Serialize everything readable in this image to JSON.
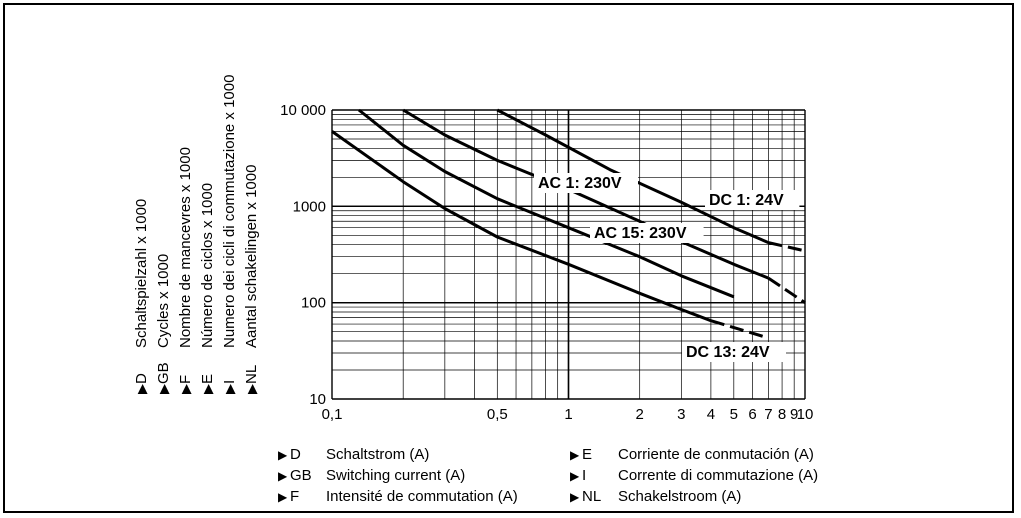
{
  "y_axis_labels": [
    {
      "code": "D",
      "text": "Schaltspielzahl x 1000"
    },
    {
      "code": "GB",
      "text": "Cycles x 1000"
    },
    {
      "code": "F",
      "text": "Nombre de mancevres x 1000"
    },
    {
      "code": "E",
      "text": "Número de ciclos x 1000"
    },
    {
      "code": "I",
      "text": "Numero dei cicli di commutazione x 1000"
    },
    {
      "code": "NL",
      "text": "Aantal schakelingen x 1000"
    }
  ],
  "x_axis_labels": [
    {
      "code": "D",
      "text": "Schaltstrom (A)"
    },
    {
      "code": "GB",
      "text": "Switching current (A)"
    },
    {
      "code": "F",
      "text": "Intensité de commutation (A)"
    },
    {
      "code": "E",
      "text": "Corriente de conmutación (A)"
    },
    {
      "code": "I",
      "text": "Corrente di commutazione (A)"
    },
    {
      "code": "NL",
      "text": "Schakelstroom (A)"
    }
  ],
  "triangle_glyph": "▶",
  "chart_data": {
    "type": "line",
    "x_scale": "log",
    "y_scale": "log",
    "xlim": [
      0.1,
      10
    ],
    "ylim": [
      10,
      10000
    ],
    "grid": true,
    "x_ticks": [
      {
        "v": 0.1,
        "label": "0,1"
      },
      {
        "v": 0.5,
        "label": "0,5"
      },
      {
        "v": 1,
        "label": "1"
      },
      {
        "v": 2,
        "label": "2"
      },
      {
        "v": 3,
        "label": "3"
      },
      {
        "v": 4,
        "label": "4"
      },
      {
        "v": 5,
        "label": "5"
      },
      {
        "v": 6,
        "label": "6"
      },
      {
        "v": 7,
        "label": "7"
      },
      {
        "v": 8,
        "label": "8"
      },
      {
        "v": 9,
        "label": "9"
      },
      {
        "v": 10,
        "label": "10"
      }
    ],
    "y_ticks": [
      {
        "v": 10,
        "label": "10"
      },
      {
        "v": 100,
        "label": "100"
      },
      {
        "v": 1000,
        "label": "1000"
      },
      {
        "v": 10000,
        "label": "10 000"
      }
    ],
    "series": [
      {
        "name": "DC 1: 24V",
        "points": [
          [
            0.5,
            10000
          ],
          [
            0.8,
            5500
          ],
          [
            1.5,
            2400
          ],
          [
            3,
            1100
          ],
          [
            5,
            600
          ],
          [
            7,
            420
          ]
        ],
        "dashed": [
          [
            7,
            420
          ],
          [
            10,
            345
          ]
        ]
      },
      {
        "name": "AC 1: 230V",
        "points": [
          [
            0.2,
            10000
          ],
          [
            0.3,
            5500
          ],
          [
            0.5,
            3000
          ],
          [
            1,
            1500
          ],
          [
            2,
            700
          ],
          [
            3,
            430
          ],
          [
            5,
            250
          ],
          [
            7,
            180
          ]
        ],
        "dashed": [
          [
            7,
            180
          ],
          [
            10,
            100
          ]
        ]
      },
      {
        "name": "AC 15: 230V",
        "points": [
          [
            0.13,
            10000
          ],
          [
            0.2,
            4300
          ],
          [
            0.3,
            2300
          ],
          [
            0.5,
            1200
          ],
          [
            1,
            600
          ],
          [
            2,
            300
          ],
          [
            3,
            190
          ],
          [
            5,
            115
          ]
        ],
        "dashed": []
      },
      {
        "name": "DC 13: 24V",
        "points": [
          [
            0.1,
            6000
          ],
          [
            0.2,
            1800
          ],
          [
            0.3,
            950
          ],
          [
            0.5,
            480
          ],
          [
            1,
            250
          ],
          [
            2,
            125
          ],
          [
            3,
            85
          ],
          [
            4,
            65
          ]
        ],
        "dashed": [
          [
            4,
            65
          ],
          [
            7,
            43
          ]
        ]
      }
    ]
  }
}
